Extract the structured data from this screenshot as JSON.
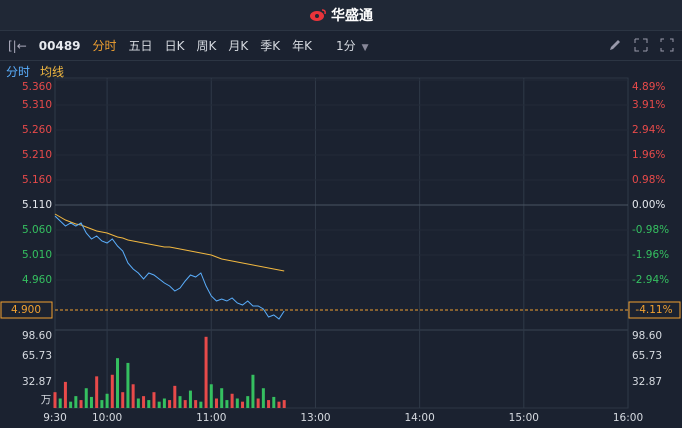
{
  "header": {
    "title": "华盛通"
  },
  "toolbar": {
    "code": "00489",
    "tabs": [
      "分时",
      "五日",
      "日K",
      "周K",
      "月K",
      "季K",
      "年K"
    ],
    "active_tab": 0,
    "interval": "1分"
  },
  "chart_data": {
    "type": "intraday",
    "xlim": [
      0,
      330
    ],
    "xticks": [
      {
        "value": 0,
        "label": "9:30"
      },
      {
        "value": 30,
        "label": "10:00"
      },
      {
        "value": 90,
        "label": "11:00"
      },
      {
        "value": 150,
        "label": "13:00"
      },
      {
        "value": 210,
        "label": "14:00"
      },
      {
        "value": 270,
        "label": "15:00"
      },
      {
        "value": 330,
        "label": "16:00"
      }
    ],
    "ylim": [
      4.86,
      5.36
    ],
    "yticks": [
      {
        "value": 5.36,
        "label": "5.360"
      },
      {
        "value": 5.31,
        "label": "5.310"
      },
      {
        "value": 5.26,
        "label": "5.260"
      },
      {
        "value": 5.21,
        "label": "5.210"
      },
      {
        "value": 5.16,
        "label": "5.160"
      },
      {
        "value": 5.11,
        "label": "5.110"
      },
      {
        "value": 5.06,
        "label": "5.060"
      },
      {
        "value": 5.01,
        "label": "5.010"
      },
      {
        "value": 4.96,
        "label": "4.960"
      }
    ],
    "base_value": 5.11,
    "y2lim": [
      -4.89,
      4.89
    ],
    "y2ticks": [
      {
        "value": 4.89,
        "label": "4.89%"
      },
      {
        "value": 3.91,
        "label": "3.91%"
      },
      {
        "value": 2.94,
        "label": "2.94%"
      },
      {
        "value": 1.96,
        "label": "1.96%"
      },
      {
        "value": 0.98,
        "label": "0.98%"
      },
      {
        "value": 0,
        "label": "0.00%"
      },
      {
        "value": -0.98,
        "label": "-0.98%"
      },
      {
        "value": -1.96,
        "label": "-1.96%"
      },
      {
        "value": -2.94,
        "label": "-2.94%"
      }
    ],
    "up_color": "#e84a4a",
    "down_color": "#35c060",
    "flat_color": "#e6e9ee",
    "x": [
      0,
      3,
      6,
      9,
      12,
      15,
      18,
      21,
      24,
      27,
      30,
      33,
      36,
      39,
      42,
      45,
      48,
      51,
      54,
      57,
      60,
      63,
      66,
      69,
      72,
      75,
      78,
      81,
      84,
      87,
      90,
      93,
      96,
      99,
      102,
      105,
      108,
      111,
      114,
      117,
      120,
      123,
      126,
      129,
      132
    ],
    "series": [
      {
        "name": "分时",
        "color": "#5aaefc",
        "values": [
          5.088,
          5.078,
          5.068,
          5.074,
          5.068,
          5.074,
          5.054,
          5.042,
          5.048,
          5.038,
          5.034,
          5.042,
          5.028,
          5.018,
          4.994,
          4.982,
          4.974,
          4.962,
          4.974,
          4.97,
          4.962,
          4.954,
          4.948,
          4.938,
          4.944,
          4.958,
          4.97,
          4.966,
          4.974,
          4.948,
          4.928,
          4.918,
          4.922,
          4.918,
          4.924,
          4.914,
          4.91,
          4.918,
          4.908,
          4.908,
          4.902,
          4.886,
          4.89,
          4.882,
          4.898
        ]
      },
      {
        "name": "均线",
        "color": "#f2b840",
        "values": [
          5.092,
          5.086,
          5.08,
          5.076,
          5.072,
          5.07,
          5.066,
          5.062,
          5.058,
          5.056,
          5.054,
          5.05,
          5.046,
          5.044,
          5.04,
          5.038,
          5.036,
          5.034,
          5.032,
          5.03,
          5.028,
          5.026,
          5.026,
          5.024,
          5.022,
          5.02,
          5.018,
          5.016,
          5.014,
          5.012,
          5.01,
          5.006,
          5.002,
          5.0,
          4.998,
          4.996,
          4.994,
          4.992,
          4.99,
          4.988,
          4.986,
          4.984,
          4.982,
          4.98,
          4.978
        ]
      }
    ],
    "last_price": {
      "value": 4.9,
      "label": "4.900"
    },
    "last_change": {
      "value": -4.11,
      "label": "-4.11%"
    },
    "last_color": "#f0a030",
    "volume": {
      "unit": "万",
      "ylim": [
        0,
        98.6
      ],
      "yticks": [
        {
          "value": 98.6,
          "label": "98.60"
        },
        {
          "value": 65.73,
          "label": "65.73"
        },
        {
          "value": 32.87,
          "label": "32.87"
        }
      ],
      "values": [
        20,
        12,
        33,
        8,
        15,
        10,
        25,
        14,
        40,
        10,
        18,
        42,
        63,
        20,
        57,
        30,
        12,
        15,
        10,
        20,
        8,
        12,
        10,
        28,
        15,
        10,
        22,
        10,
        8,
        90,
        30,
        12,
        25,
        10,
        18,
        12,
        8,
        15,
        42,
        12,
        25,
        10,
        14,
        8,
        10
      ],
      "colors": [
        "#e84a4a",
        "#35c060",
        "#e84a4a",
        "#35c060",
        "#35c060",
        "#e84a4a",
        "#35c060",
        "#35c060",
        "#e84a4a",
        "#35c060",
        "#35c060",
        "#e84a4a",
        "#35c060",
        "#e84a4a",
        "#35c060",
        "#e84a4a",
        "#35c060",
        "#e84a4a",
        "#35c060",
        "#e84a4a",
        "#35c060",
        "#35c060",
        "#e84a4a",
        "#e84a4a",
        "#35c060",
        "#e84a4a",
        "#35c060",
        "#e84a4a",
        "#35c060",
        "#e84a4a",
        "#35c060",
        "#e84a4a",
        "#35c060",
        "#35c060",
        "#e84a4a",
        "#35c060",
        "#e84a4a",
        "#35c060",
        "#35c060",
        "#e84a4a",
        "#35c060",
        "#e84a4a",
        "#35c060",
        "#e84a4a",
        "#e84a4a"
      ]
    }
  }
}
